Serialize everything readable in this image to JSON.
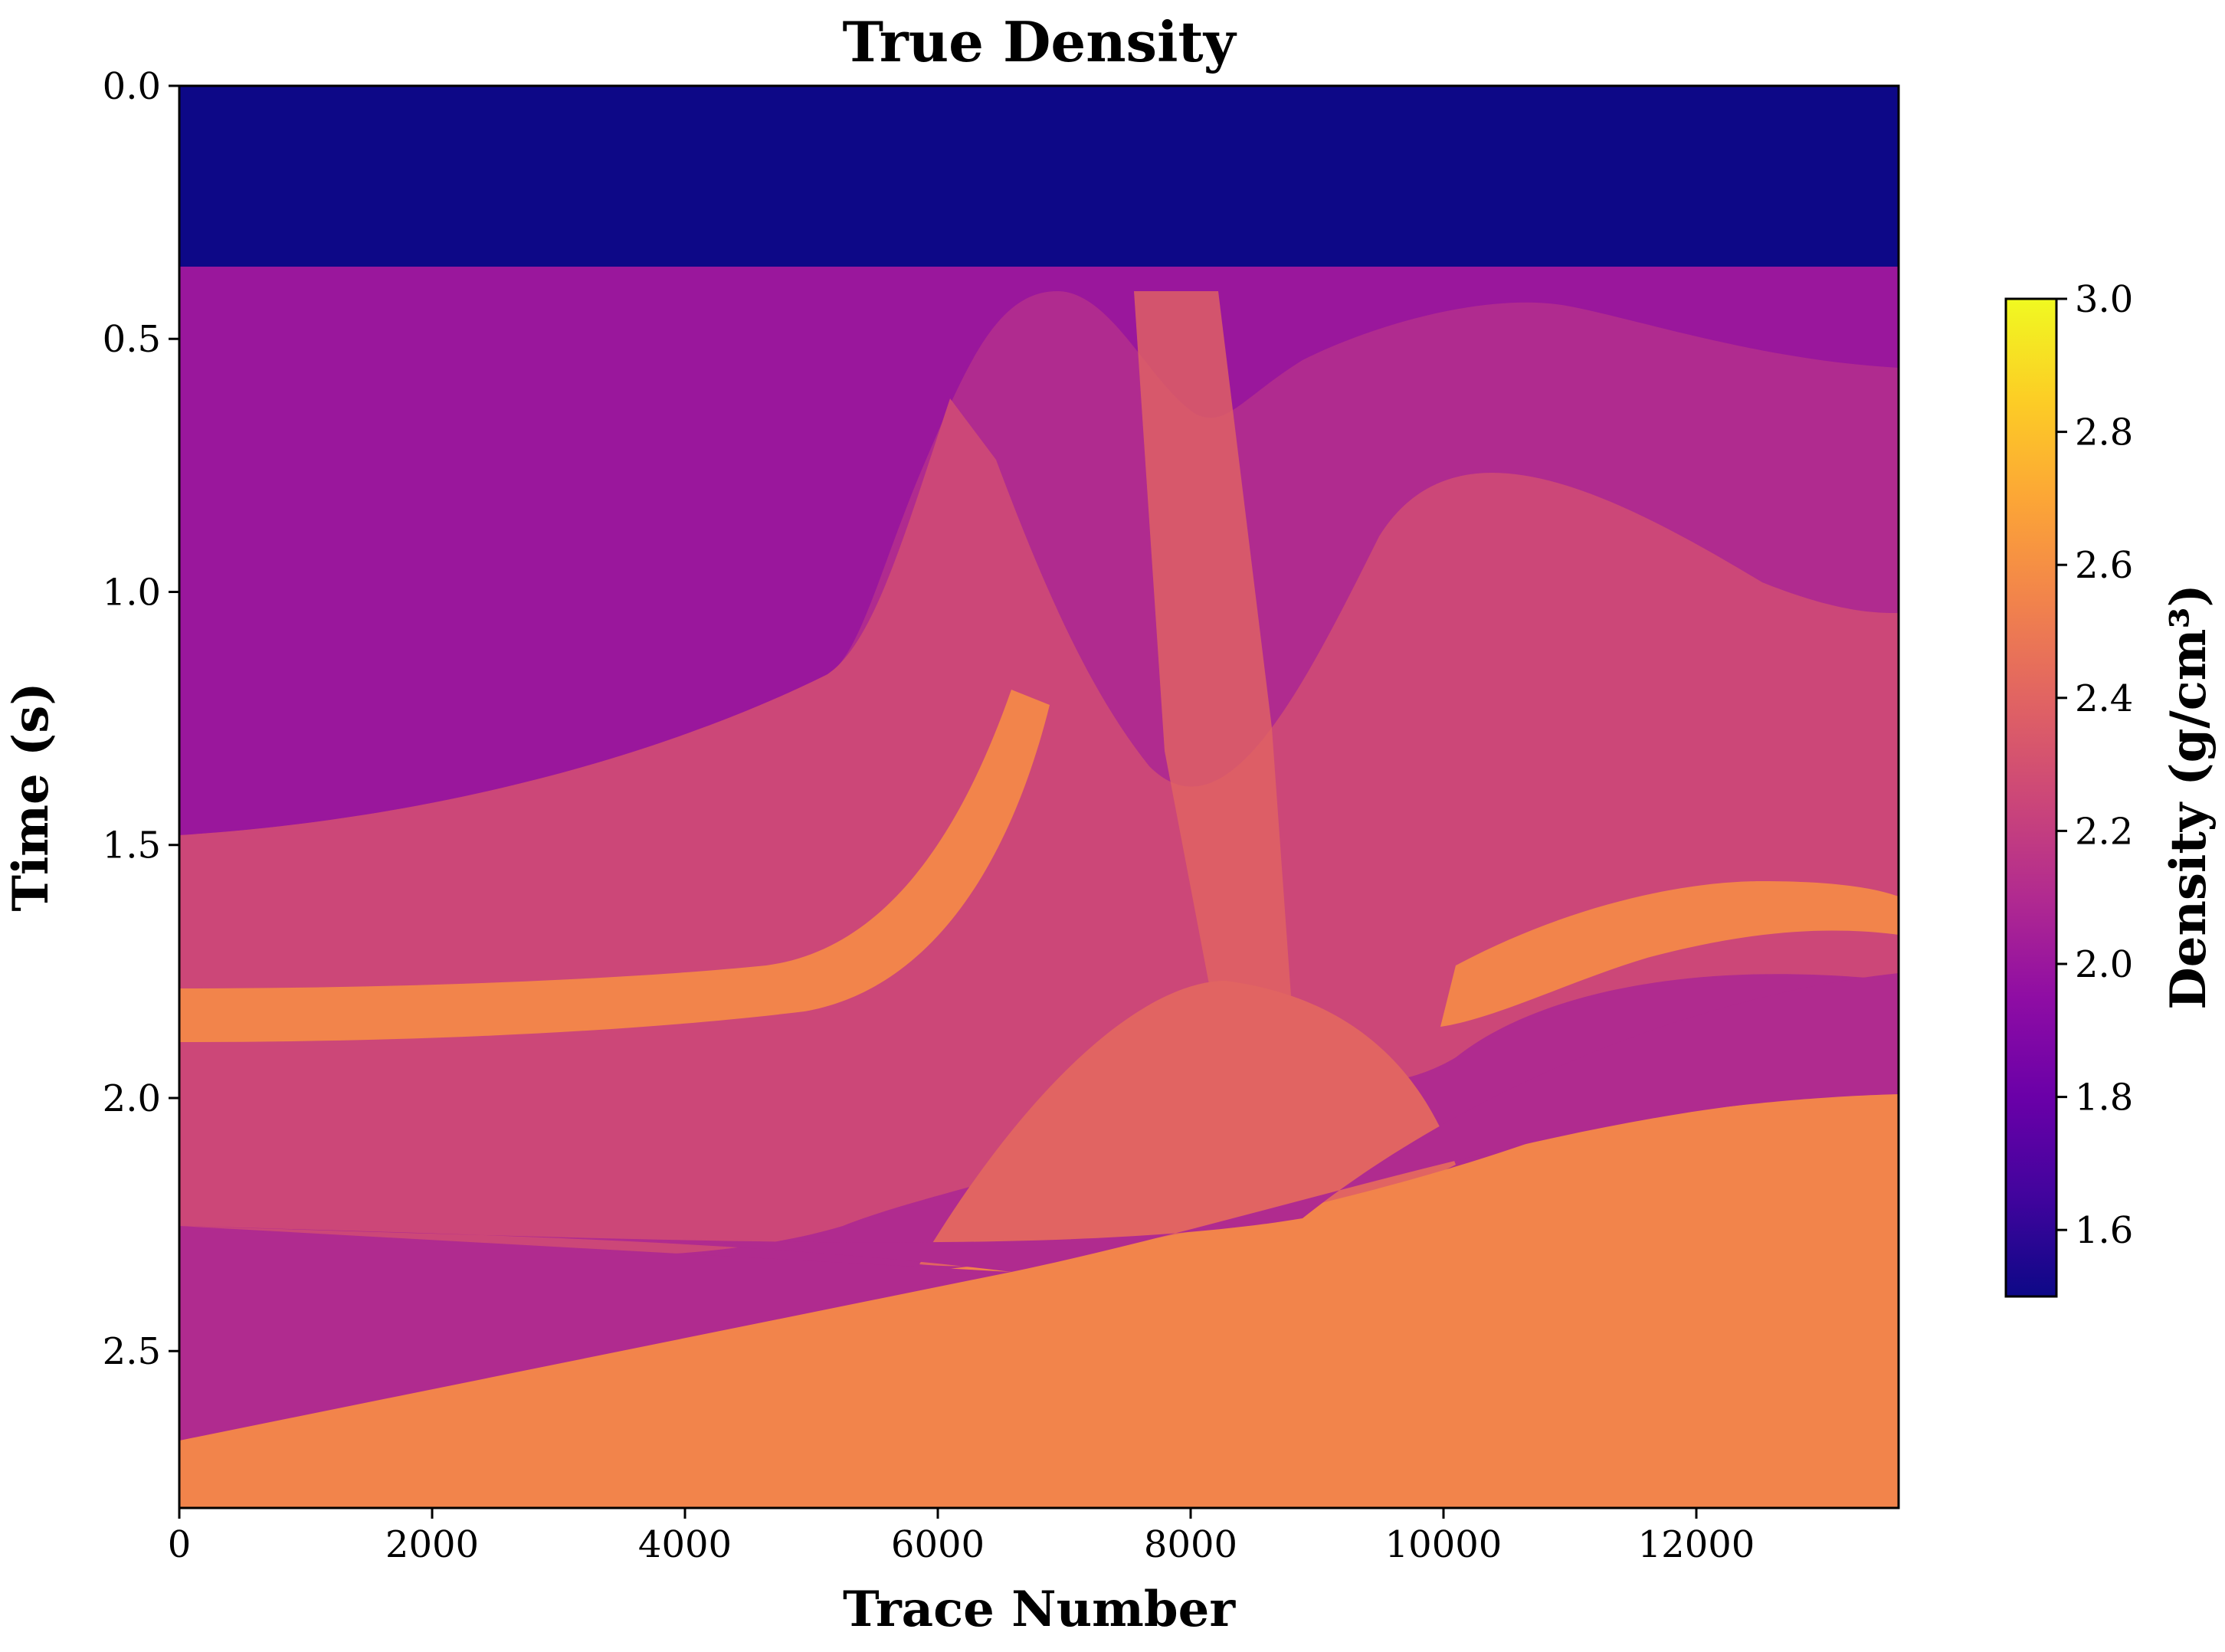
{
  "chart_data": {
    "type": "heatmap",
    "title": "True Density",
    "xlabel": "Trace Number",
    "ylabel": "Time (s)",
    "xlim": [
      0,
      13600
    ],
    "ylim": [
      2.81,
      0.0
    ],
    "x_ticks": [
      "0",
      "2000",
      "4000",
      "6000",
      "8000",
      "10000",
      "12000"
    ],
    "x_tick_values": [
      0,
      2000,
      4000,
      6000,
      8000,
      10000,
      12000
    ],
    "y_ticks": [
      "0.0",
      "0.5",
      "1.0",
      "1.5",
      "2.0",
      "2.5"
    ],
    "y_tick_values": [
      0.0,
      0.5,
      1.0,
      1.5,
      2.0,
      2.5
    ],
    "colorbar": {
      "label": "Density (g/cm³)",
      "colormap": "plasma",
      "range": [
        1.5,
        3.0
      ],
      "ticks": [
        "1.6",
        "1.8",
        "2.0",
        "2.2",
        "2.4",
        "2.6",
        "2.8",
        "3.0"
      ],
      "tick_values": [
        1.6,
        1.8,
        2.0,
        2.2,
        2.4,
        2.6,
        2.8,
        3.0
      ]
    },
    "layers": {
      "water_density": 1.5,
      "water_bottom_time": 0.36,
      "unconformity_density": 2.2
    },
    "grid": false
  }
}
